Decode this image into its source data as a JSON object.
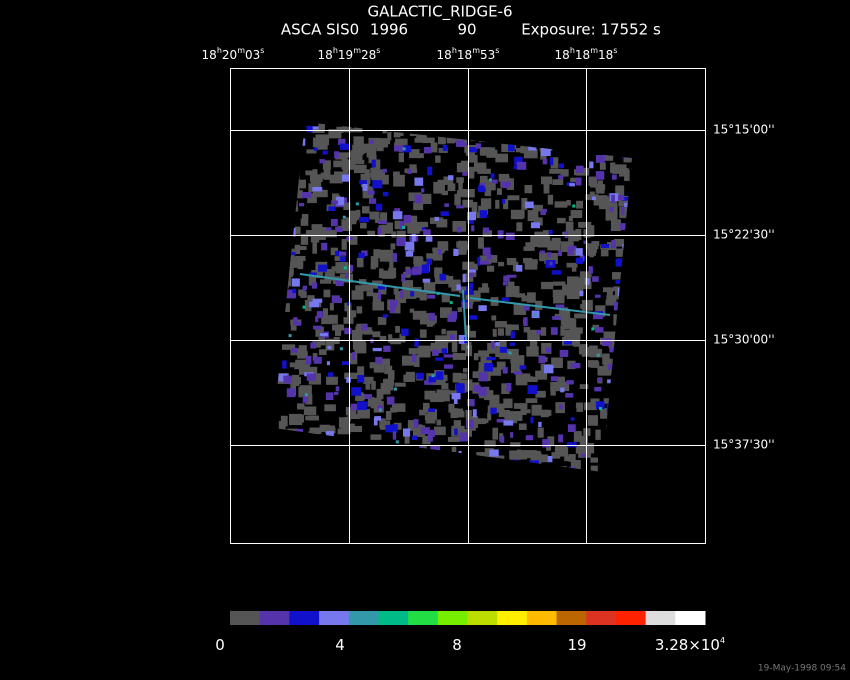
{
  "header": {
    "title": "GALACTIC_RIDGE-6",
    "info": [
      "ASCA SIS0",
      "1996",
      "90",
      "Exposure: 17552 s"
    ]
  },
  "ra_labels": [
    [
      "18",
      "h",
      "20",
      "m",
      "03",
      "s"
    ],
    [
      "18",
      "h",
      "19",
      "m",
      "28",
      "s"
    ],
    [
      "18",
      "h",
      "18",
      "m",
      "53",
      "s"
    ],
    [
      "18",
      "h",
      "18",
      "m",
      "18",
      "s"
    ]
  ],
  "dec_labels": [
    "15°15'00''",
    "15°22'30''",
    "15°30'00''",
    "15°37'30''"
  ],
  "colorbar": {
    "colors": [
      "#555555",
      "#5533aa",
      "#1111cc",
      "#7777ee",
      "#3399aa",
      "#00bb88",
      "#22dd44",
      "#77ee00",
      "#bbdd00",
      "#ffee00",
      "#ffbb00",
      "#bb6600",
      "#dd3322",
      "#ff2200",
      "#dddddd",
      "#ffffff"
    ],
    "labels": [
      [
        "0"
      ],
      [
        "4"
      ],
      [
        "8"
      ],
      [
        "19"
      ],
      [
        "3.28×10",
        "4"
      ]
    ]
  },
  "timestamp": "19-May-1998 09:54"
}
